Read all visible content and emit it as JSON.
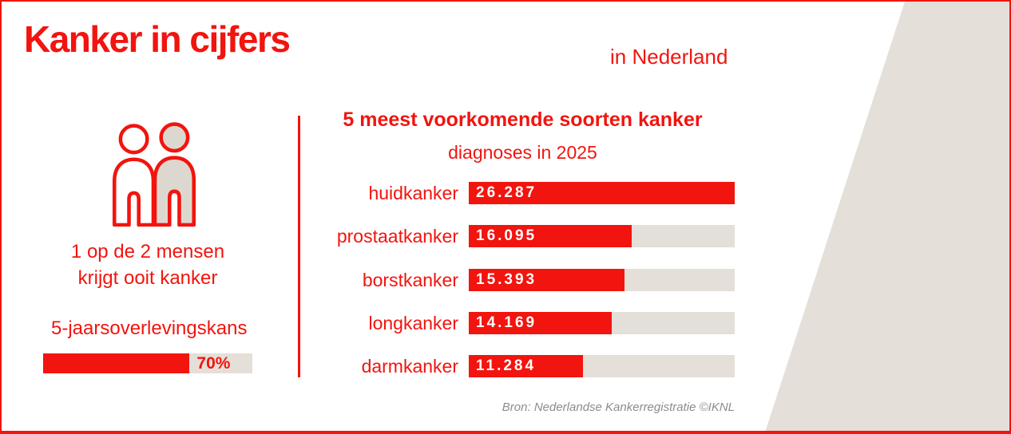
{
  "header": {
    "title": "Kanker in cijfers",
    "subtitle": "in Nederland"
  },
  "left_panel": {
    "icon": "two-persons-icon",
    "caption_line1": "1 op de 2 mensen",
    "caption_line2": "krijgt ooit kanker",
    "survival": {
      "label": "5-jaarsoverlevingskans",
      "percent": 70,
      "value_label": "70%"
    }
  },
  "chart_data": {
    "type": "bar",
    "orientation": "horizontal",
    "title": "5 meest voorkomende soorten kanker",
    "subtitle": "diagnoses in 2025",
    "categories": [
      "huidkanker",
      "prostaatkanker",
      "borstkanker",
      "longkanker",
      "darmkanker"
    ],
    "values": [
      26287,
      16095,
      15393,
      14169,
      11284
    ],
    "value_labels": [
      "26.287",
      "16.095",
      "15.393",
      "14.169",
      "11.284"
    ],
    "xlim": [
      0,
      26287
    ],
    "grid": false,
    "legend": false,
    "bar_color": "#f2140e",
    "track_color": "#e4dfd8"
  },
  "footer": {
    "source": "Bron: Nederlandse Kankerregistratie ©IKNL"
  },
  "colors": {
    "accent_red": "#f2140e",
    "beige": "#e4dfd8",
    "person_fill": "#ddd8cf",
    "source_gray": "#8d8c8b"
  }
}
